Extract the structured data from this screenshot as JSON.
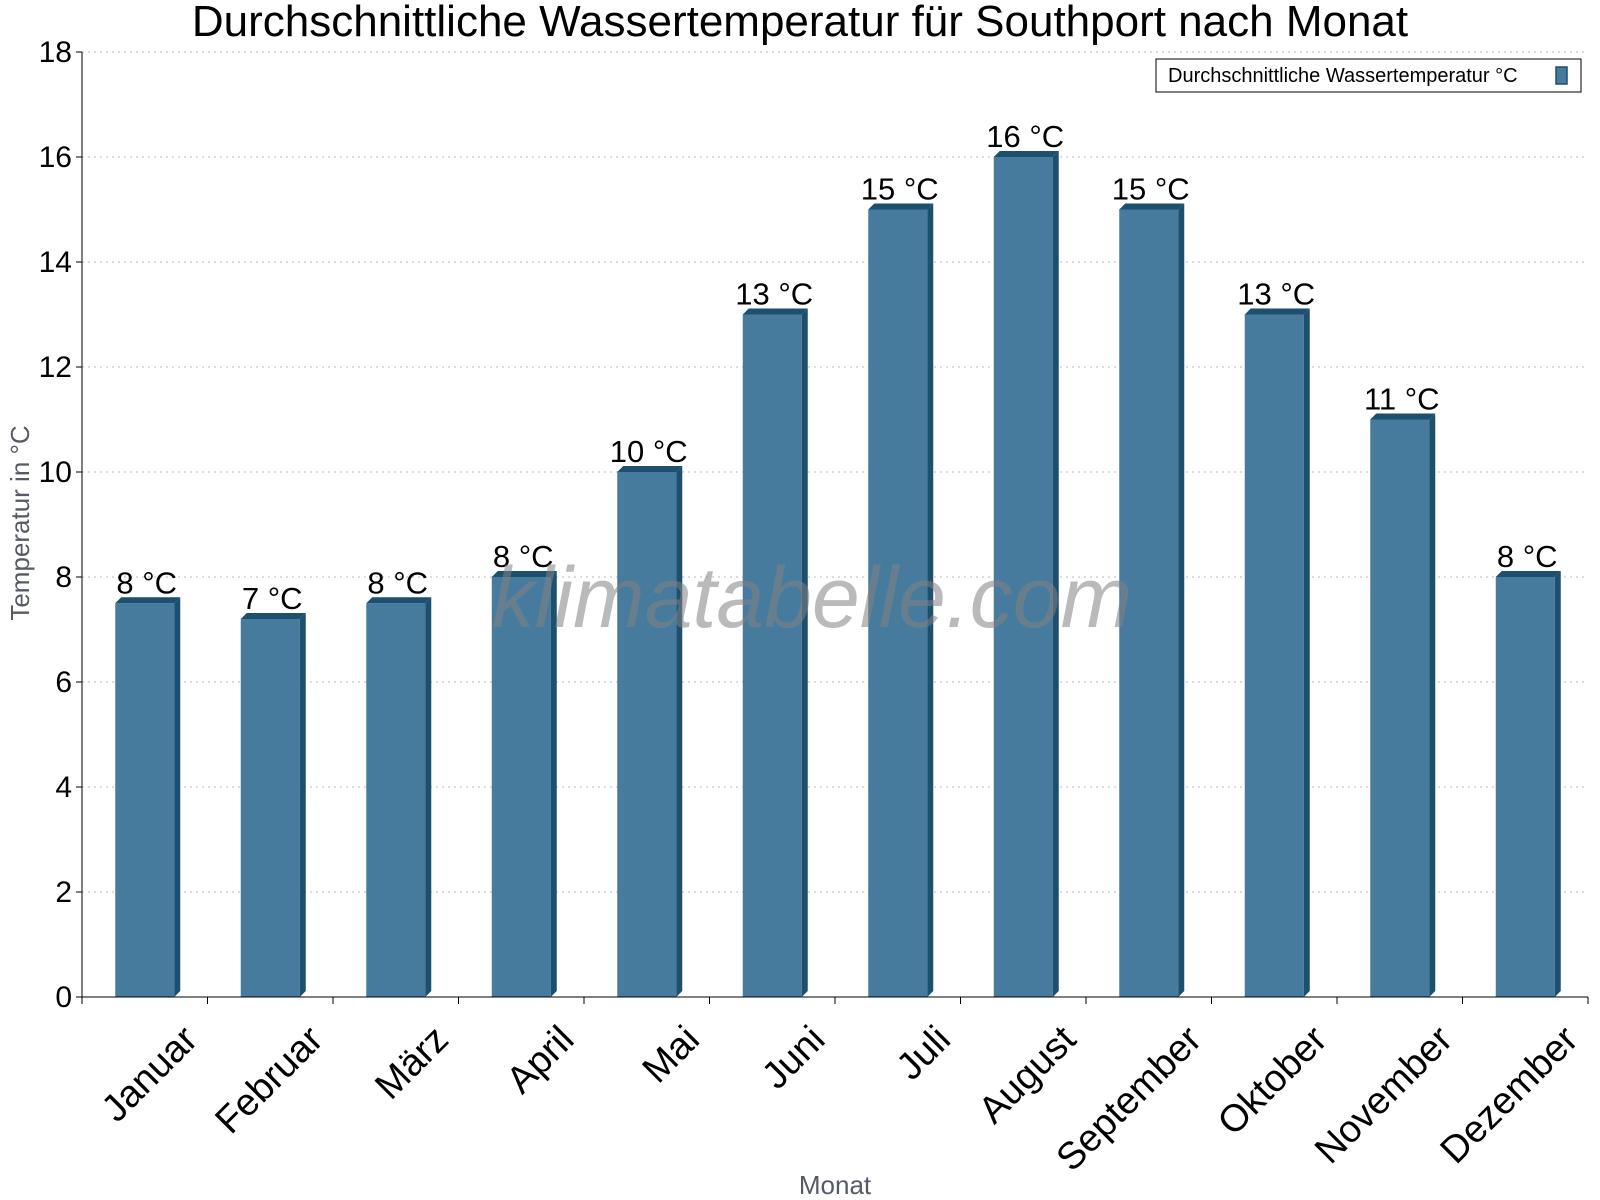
{
  "chart_data": {
    "type": "bar",
    "title": "Durchschnittliche Wassertemperatur für Southport nach Monat",
    "xlabel": "Monat",
    "ylabel": "Temperatur in °C",
    "ylim": [
      0,
      18
    ],
    "yticks": [
      0,
      2,
      4,
      6,
      8,
      10,
      12,
      14,
      16,
      18
    ],
    "grid": true,
    "legend_position": "top-right",
    "categories": [
      "Januar",
      "Februar",
      "März",
      "April",
      "Mai",
      "Juni",
      "Juli",
      "August",
      "September",
      "Oktober",
      "November",
      "Dezember"
    ],
    "series": [
      {
        "name": "Durchschnittliche Wassertemperatur °C",
        "values": [
          7.5,
          7.2,
          7.5,
          8,
          10,
          13,
          15,
          16,
          15,
          13,
          11,
          8
        ],
        "labels": [
          "8 °C",
          "7 °C",
          "8 °C",
          "8 °C",
          "10 °C",
          "13 °C",
          "15 °C",
          "16 °C",
          "15 °C",
          "13 °C",
          "11 °C",
          "8 °C"
        ],
        "color": "#467b9e",
        "shade_color": "#1d4f6e"
      }
    ],
    "watermark": "klimatabelle.com"
  }
}
